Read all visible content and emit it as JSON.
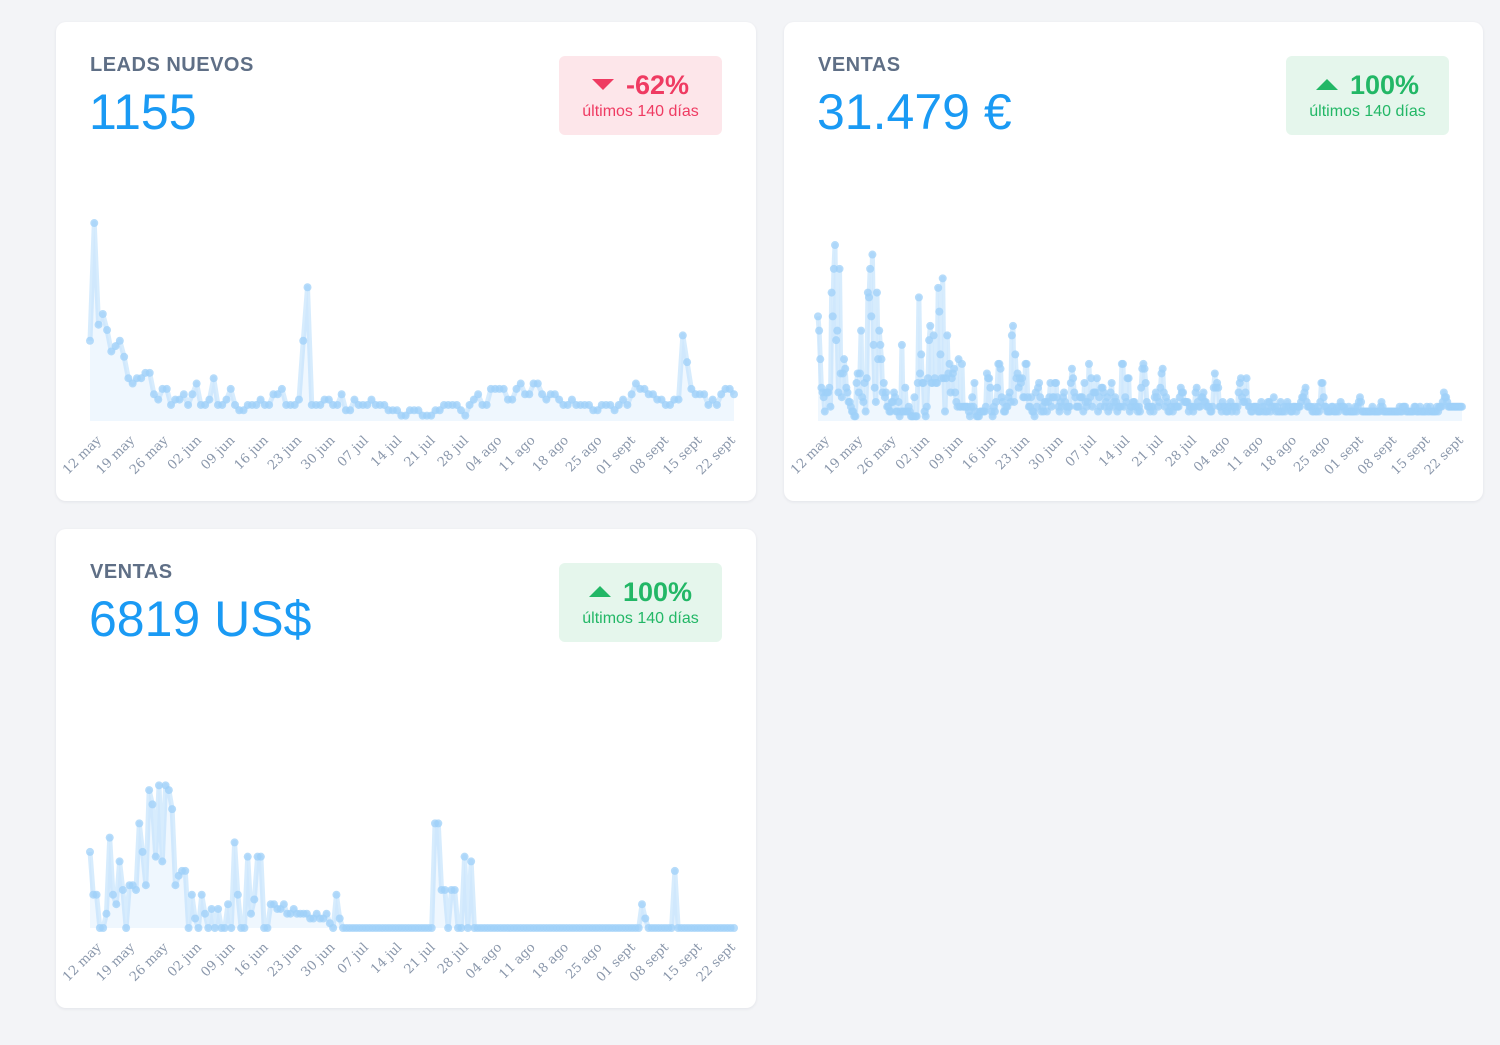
{
  "cards": [
    {
      "title": "LEADS NUEVOS",
      "value": "1155",
      "badge": {
        "direction": "down",
        "value": "-62%",
        "caption": "últimos 140 días",
        "color": "#ef3b62"
      }
    },
    {
      "title": "VENTAS",
      "value": "31.479 €",
      "badge": {
        "direction": "up",
        "value": "100%",
        "caption": "últimos 140 días",
        "color": "#22b766"
      }
    },
    {
      "title": "VENTAS",
      "value": "6819 US$",
      "badge": {
        "direction": "up",
        "value": "100%",
        "caption": "últimos 140 días",
        "color": "#22b766"
      }
    }
  ],
  "chart_data": [
    {
      "type": "area",
      "title": "LEADS NUEVOS",
      "line_color": "#b6dcfb",
      "fill_color": "#e8f4fe",
      "x_tick_labels": [
        "12 may",
        "19 may",
        "26 may",
        "02 jun",
        "09 jun",
        "16 jun",
        "23 jun",
        "30 jun",
        "07 jul",
        "14 jul",
        "21 jul",
        "28 jul",
        "04 ago",
        "11 ago",
        "18 ago",
        "25 ago",
        "01 sept",
        "08 sept",
        "15 sept",
        "22 sept"
      ],
      "ylim": [
        0,
        40
      ],
      "values": [
        15,
        37,
        18,
        20,
        17,
        13,
        14,
        15,
        12,
        8,
        7,
        8,
        8,
        9,
        9,
        5,
        4,
        6,
        6,
        3,
        4,
        4,
        5,
        3,
        5,
        7,
        3,
        3,
        4,
        8,
        3,
        3,
        4,
        6,
        3,
        2,
        2,
        3,
        3,
        3,
        4,
        3,
        3,
        5,
        5,
        6,
        3,
        3,
        3,
        4,
        15,
        25,
        3,
        3,
        3,
        4,
        4,
        3,
        3,
        5,
        2,
        2,
        4,
        3,
        3,
        3,
        4,
        3,
        3,
        3,
        2,
        2,
        2,
        1,
        1,
        2,
        2,
        2,
        1,
        1,
        1,
        2,
        2,
        3,
        3,
        3,
        3,
        2,
        1,
        3,
        4,
        5,
        3,
        3,
        6,
        6,
        6,
        6,
        4,
        4,
        6,
        7,
        5,
        5,
        7,
        7,
        5,
        4,
        5,
        5,
        4,
        3,
        3,
        4,
        3,
        3,
        3,
        3,
        2,
        2,
        3,
        3,
        3,
        2,
        3,
        4,
        3,
        5,
        7,
        6,
        6,
        5,
        5,
        4,
        4,
        3,
        3,
        4,
        4,
        16,
        11,
        6,
        5,
        5,
        5,
        3,
        4,
        3,
        5,
        6,
        6,
        5
      ]
    },
    {
      "type": "area",
      "title": "VENTAS",
      "line_color": "#b6dcfb",
      "fill_color": "#e8f4fe",
      "x_tick_labels": [
        "12 may",
        "19 may",
        "26 may",
        "02 jun",
        "09 jun",
        "16 jun",
        "23 jun",
        "30 jun",
        "07 jul",
        "14 jul",
        "21 jul",
        "28 jul",
        "04 ago",
        "11 ago",
        "18 ago",
        "25 ago",
        "01 sept",
        "08 sept",
        "15 sept",
        "22 sept"
      ],
      "ylim": [
        0,
        45
      ],
      "values": [
        22,
        19,
        13,
        7,
        6,
        5,
        2,
        6,
        6,
        6,
        7,
        3,
        27,
        22,
        32,
        37,
        17,
        19,
        6,
        32,
        10,
        5,
        10,
        13,
        11,
        7,
        6,
        4,
        4,
        3,
        2,
        2,
        1,
        1,
        8,
        10,
        6,
        10,
        19,
        5,
        4,
        8,
        2,
        9,
        27,
        26,
        32,
        22,
        35,
        16,
        7,
        4,
        27,
        13,
        19,
        16,
        13,
        6,
        8,
        5,
        6,
        3,
        3,
        2,
        2,
        4,
        4,
        6,
        5,
        2,
        2,
        4,
        1,
        2,
        16,
        2,
        2,
        7,
        2,
        2,
        3,
        2,
        1,
        1,
        1,
        5,
        1,
        1,
        8,
        26,
        10,
        14,
        8,
        8,
        2,
        1,
        3,
        9,
        17,
        20,
        8,
        8,
        18,
        9,
        8,
        8,
        28,
        23,
        14,
        9,
        30,
        9,
        2,
        9,
        18,
        10,
        12,
        6,
        9,
        10,
        11,
        6,
        4,
        3,
        13,
        3,
        3,
        12,
        3,
        3,
        3,
        3,
        3,
        2,
        1,
        3,
        5,
        3,
        8,
        2,
        1,
        1,
        1,
        2,
        2,
        2,
        2,
        2,
        3,
        10,
        9,
        9,
        7,
        2,
        1,
        3,
        2,
        4,
        7,
        12,
        12,
        11,
        5,
        4,
        2,
        2,
        3,
        3,
        5,
        6,
        4,
        18,
        20,
        4,
        14,
        9,
        10,
        7,
        9,
        8,
        9,
        5,
        5,
        12,
        12,
        5,
        3,
        3,
        5,
        2,
        2,
        1,
        6,
        3,
        7,
        8,
        5,
        2,
        3,
        2,
        4,
        4,
        2,
        4,
        5,
        8,
        3,
        5,
        5,
        8,
        8,
        5,
        3,
        2,
        4,
        3,
        5,
        6,
        4,
        3,
        2,
        3,
        3,
        8,
        11,
        9,
        6,
        5,
        3,
        3,
        3,
        5,
        5,
        5,
        2,
        8,
        4,
        3,
        4,
        12,
        5,
        9,
        3,
        6,
        6,
        6,
        9,
        2,
        5,
        3,
        7,
        7,
        6,
        3,
        4,
        5,
        2,
        3,
        6,
        8,
        3,
        4,
        5,
        4,
        2,
        3,
        3,
        3,
        12,
        12,
        3,
        5,
        4,
        9,
        9,
        2,
        3,
        3,
        4,
        4,
        3,
        3,
        2,
        3,
        2,
        7,
        11,
        12,
        11,
        8,
        4,
        3,
        3,
        2,
        3,
        3,
        2,
        5,
        6,
        5,
        3,
        4,
        7,
        10,
        11,
        6,
        3,
        5,
        4,
        2,
        2,
        3,
        3,
        2,
        4,
        3,
        3,
        3,
        3,
        5,
        7,
        6,
        6,
        4,
        4,
        4,
        4,
        2,
        3,
        3,
        3,
        2,
        3,
        6,
        7,
        4,
        3,
        3,
        5,
        5,
        6,
        4,
        4,
        3,
        3,
        3,
        2,
        2,
        3,
        7,
        10,
        7,
        8,
        7,
        3,
        3,
        2,
        4,
        3,
        3,
        2,
        2,
        3,
        3,
        4,
        2,
        3,
        3,
        3,
        2,
        3,
        6,
        8,
        9,
        5,
        4,
        4,
        6,
        9,
        4,
        3,
        3,
        2,
        2,
        3,
        3,
        3,
        3,
        2,
        2,
        2,
        4,
        3,
        2,
        3,
        2,
        2,
        4,
        4,
        2,
        3,
        3,
        5,
        3,
        2,
        3,
        2,
        2,
        4,
        2,
        2,
        3,
        2,
        3,
        4,
        3,
        3,
        2,
        2,
        3,
        3,
        3,
        2,
        3,
        3,
        3,
        4,
        5,
        5,
        6,
        7,
        4,
        3,
        3,
        3,
        3,
        2,
        2,
        3,
        2,
        2,
        3,
        2,
        4,
        8,
        8,
        5,
        3,
        3,
        2,
        2,
        2,
        2,
        3,
        3,
        2,
        2,
        2,
        3,
        2,
        3,
        4,
        3,
        3,
        3,
        2,
        2,
        2,
        3,
        2,
        2,
        2,
        2,
        2,
        3,
        2,
        3,
        4,
        5,
        4,
        2,
        2,
        2,
        2,
        2,
        2,
        2,
        2,
        2,
        3,
        2,
        2,
        2,
        2,
        2,
        2,
        3,
        4,
        3,
        2,
        2,
        2,
        2,
        2,
        2,
        2,
        2,
        2,
        2,
        2,
        2,
        2,
        2,
        3,
        2,
        2,
        3,
        3,
        3,
        2,
        2,
        2,
        2,
        2,
        2,
        2,
        3,
        3,
        2,
        2,
        2,
        3,
        2,
        2,
        2,
        2,
        2,
        3,
        2,
        2,
        3,
        2,
        2,
        2,
        2,
        2,
        3,
        2,
        3,
        3,
        3,
        4,
        6,
        5,
        5,
        4,
        3,
        3,
        3,
        3,
        3,
        3,
        3,
        3,
        3,
        3,
        3,
        3,
        3
      ]
    },
    {
      "type": "area",
      "title": "VENTAS",
      "line_color": "#b6dcfb",
      "fill_color": "#e8f4fe",
      "x_tick_labels": [
        "12 may",
        "19 may",
        "26 may",
        "02 jun",
        "09 jun",
        "16 jun",
        "23 jun",
        "30 jun",
        "07 jul",
        "14 jul",
        "21 jul",
        "28 jul",
        "04 ago",
        "11 ago",
        "18 ago",
        "25 ago",
        "01 sept",
        "08 sept",
        "15 sept",
        "22 sept"
      ],
      "ylim": [
        0,
        45
      ],
      "values": [
        16,
        7,
        7,
        0,
        0,
        3,
        19,
        7,
        5,
        14,
        8,
        0,
        9,
        9,
        8,
        22,
        16,
        9,
        29,
        26,
        15,
        30,
        14,
        30,
        29,
        25,
        9,
        11,
        12,
        12,
        0,
        7,
        2,
        0,
        7,
        3,
        0,
        4,
        0,
        4,
        0,
        0,
        5,
        0,
        18,
        7,
        0,
        0,
        15,
        3,
        6,
        15,
        15,
        0,
        0,
        5,
        5,
        4,
        4,
        5,
        3,
        3,
        4,
        3,
        3,
        3,
        3,
        2,
        2,
        3,
        2,
        2,
        3,
        1,
        0,
        7,
        2,
        0,
        0,
        0,
        0,
        0,
        0,
        0,
        0,
        0,
        0,
        0,
        0,
        0,
        0,
        0,
        0,
        0,
        0,
        0,
        0,
        0,
        0,
        0,
        0,
        0,
        0,
        0,
        0,
        22,
        22,
        8,
        8,
        0,
        8,
        8,
        0,
        0,
        15,
        0,
        14,
        0,
        0,
        0,
        0,
        0,
        0,
        0,
        0,
        0,
        0,
        0,
        0,
        0,
        0,
        0,
        0,
        0,
        0,
        0,
        0,
        0,
        0,
        0,
        0,
        0,
        0,
        0,
        0,
        0,
        0,
        0,
        0,
        0,
        0,
        0,
        0,
        0,
        0,
        0,
        0,
        0,
        0,
        0,
        0,
        0,
        0,
        0,
        0,
        0,
        0,
        0,
        5,
        2,
        0,
        0,
        0,
        0,
        0,
        0,
        0,
        0,
        12,
        0,
        0,
        0,
        0,
        0,
        0,
        0,
        0,
        0,
        0,
        0,
        0,
        0,
        0,
        0,
        0,
        0,
        0
      ]
    }
  ]
}
